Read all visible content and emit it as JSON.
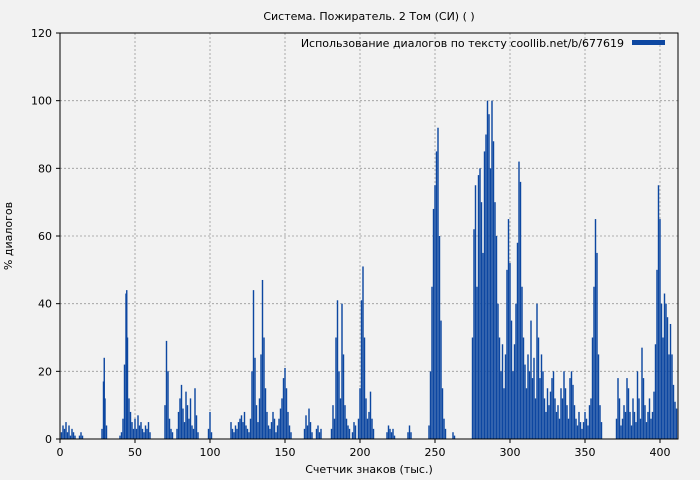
{
  "chart_data": {
    "type": "bar",
    "title": "Система. Пожиратель. 2 Том (СИ) ( )",
    "xlabel": "Счетчик знаков (тыс.)",
    "ylabel": "% диалогов",
    "xlim": [
      0,
      412
    ],
    "ylim": [
      0,
      120
    ],
    "xticks": [
      0,
      50,
      100,
      150,
      200,
      250,
      300,
      350,
      400
    ],
    "yticks": [
      0,
      20,
      40,
      60,
      80,
      100,
      120
    ],
    "grid": true,
    "legend_position": "top-right",
    "series": [
      {
        "name": "Использование диалогов по тексту coollib.net/b/677619",
        "color": "#0d47a1",
        "points": [
          [
            1,
            2
          ],
          [
            2,
            4
          ],
          [
            3,
            3
          ],
          [
            4,
            5
          ],
          [
            5,
            2
          ],
          [
            6,
            4
          ],
          [
            7,
            1
          ],
          [
            8,
            3
          ],
          [
            9,
            2
          ],
          [
            10,
            1
          ],
          [
            13,
            1
          ],
          [
            14,
            2
          ],
          [
            15,
            1
          ],
          [
            28,
            3
          ],
          [
            29,
            17
          ],
          [
            29.5,
            24
          ],
          [
            30,
            12
          ],
          [
            31,
            4
          ],
          [
            40,
            1
          ],
          [
            41,
            2
          ],
          [
            42,
            6
          ],
          [
            43,
            22
          ],
          [
            44,
            43
          ],
          [
            44.5,
            44
          ],
          [
            45,
            30
          ],
          [
            46,
            12
          ],
          [
            47,
            8
          ],
          [
            48,
            5
          ],
          [
            49,
            3
          ],
          [
            50,
            6
          ],
          [
            51,
            3
          ],
          [
            52,
            7
          ],
          [
            53,
            4
          ],
          [
            54,
            5
          ],
          [
            55,
            3
          ],
          [
            56,
            2
          ],
          [
            57,
            4
          ],
          [
            58,
            3
          ],
          [
            59,
            5
          ],
          [
            60,
            2
          ],
          [
            70,
            10
          ],
          [
            71,
            29
          ],
          [
            72,
            20
          ],
          [
            73,
            6
          ],
          [
            74,
            3
          ],
          [
            75,
            2
          ],
          [
            78,
            3
          ],
          [
            79,
            8
          ],
          [
            80,
            12
          ],
          [
            81,
            16
          ],
          [
            82,
            9
          ],
          [
            83,
            5
          ],
          [
            84,
            14
          ],
          [
            85,
            10
          ],
          [
            86,
            6
          ],
          [
            87,
            12
          ],
          [
            88,
            4
          ],
          [
            89,
            3
          ],
          [
            90,
            15
          ],
          [
            91,
            7
          ],
          [
            92,
            2
          ],
          [
            99,
            3
          ],
          [
            100,
            8
          ],
          [
            101,
            2
          ],
          [
            114,
            5
          ],
          [
            115,
            3
          ],
          [
            116,
            2
          ],
          [
            117,
            4
          ],
          [
            118,
            3
          ],
          [
            119,
            5
          ],
          [
            120,
            6
          ],
          [
            121,
            7
          ],
          [
            122,
            5
          ],
          [
            123,
            8
          ],
          [
            124,
            4
          ],
          [
            125,
            3
          ],
          [
            126,
            2
          ],
          [
            127,
            6
          ],
          [
            128,
            20
          ],
          [
            129,
            44
          ],
          [
            130,
            24
          ],
          [
            131,
            10
          ],
          [
            132,
            5
          ],
          [
            133,
            12
          ],
          [
            134,
            25
          ],
          [
            135,
            47
          ],
          [
            136,
            30
          ],
          [
            137,
            15
          ],
          [
            138,
            8
          ],
          [
            139,
            4
          ],
          [
            140,
            3
          ],
          [
            141,
            5
          ],
          [
            142,
            8
          ],
          [
            143,
            6
          ],
          [
            144,
            2
          ],
          [
            145,
            4
          ],
          [
            146,
            6
          ],
          [
            147,
            9
          ],
          [
            148,
            12
          ],
          [
            149,
            18
          ],
          [
            150,
            21
          ],
          [
            151,
            15
          ],
          [
            152,
            8
          ],
          [
            153,
            4
          ],
          [
            154,
            2
          ],
          [
            163,
            3
          ],
          [
            164,
            7
          ],
          [
            165,
            4
          ],
          [
            166,
            9
          ],
          [
            167,
            5
          ],
          [
            168,
            2
          ],
          [
            171,
            3
          ],
          [
            172,
            4
          ],
          [
            173,
            2
          ],
          [
            174,
            3
          ],
          [
            181,
            3
          ],
          [
            182,
            10
          ],
          [
            183,
            6
          ],
          [
            184,
            30
          ],
          [
            185,
            41
          ],
          [
            186,
            20
          ],
          [
            187,
            12
          ],
          [
            188,
            40
          ],
          [
            189,
            25
          ],
          [
            190,
            10
          ],
          [
            191,
            6
          ],
          [
            192,
            4
          ],
          [
            193,
            3
          ],
          [
            195,
            2
          ],
          [
            196,
            5
          ],
          [
            197,
            4
          ],
          [
            199,
            6
          ],
          [
            200,
            15
          ],
          [
            201,
            41
          ],
          [
            202,
            51
          ],
          [
            203,
            30
          ],
          [
            204,
            12
          ],
          [
            205,
            6
          ],
          [
            206,
            8
          ],
          [
            207,
            14
          ],
          [
            208,
            6
          ],
          [
            209,
            3
          ],
          [
            218,
            2
          ],
          [
            219,
            4
          ],
          [
            220,
            3
          ],
          [
            221,
            2
          ],
          [
            222,
            3
          ],
          [
            223,
            1
          ],
          [
            232,
            2
          ],
          [
            233,
            4
          ],
          [
            234,
            2
          ],
          [
            246,
            4
          ],
          [
            247,
            20
          ],
          [
            248,
            45
          ],
          [
            249,
            68
          ],
          [
            250,
            75
          ],
          [
            251,
            85
          ],
          [
            252,
            92
          ],
          [
            253,
            60
          ],
          [
            254,
            35
          ],
          [
            255,
            15
          ],
          [
            256,
            6
          ],
          [
            257,
            3
          ],
          [
            262,
            2
          ],
          [
            263,
            1
          ],
          [
            275,
            30
          ],
          [
            276,
            62
          ],
          [
            277,
            75
          ],
          [
            278,
            45
          ],
          [
            279,
            78
          ],
          [
            280,
            80
          ],
          [
            281,
            70
          ],
          [
            282,
            55
          ],
          [
            283,
            85
          ],
          [
            284,
            90
          ],
          [
            285,
            100
          ],
          [
            286,
            96
          ],
          [
            287,
            80
          ],
          [
            288,
            100
          ],
          [
            289,
            88
          ],
          [
            290,
            70
          ],
          [
            291,
            60
          ],
          [
            292,
            40
          ],
          [
            293,
            30
          ],
          [
            294,
            20
          ],
          [
            295,
            28
          ],
          [
            296,
            15
          ],
          [
            297,
            25
          ],
          [
            298,
            50
          ],
          [
            299,
            65
          ],
          [
            300,
            52
          ],
          [
            301,
            35
          ],
          [
            302,
            20
          ],
          [
            303,
            28
          ],
          [
            304,
            40
          ],
          [
            305,
            58
          ],
          [
            306,
            82
          ],
          [
            307,
            76
          ],
          [
            308,
            45
          ],
          [
            309,
            30
          ],
          [
            310,
            22
          ],
          [
            311,
            15
          ],
          [
            312,
            25
          ],
          [
            313,
            20
          ],
          [
            314,
            35
          ],
          [
            315,
            18
          ],
          [
            316,
            24
          ],
          [
            317,
            12
          ],
          [
            318,
            40
          ],
          [
            319,
            30
          ],
          [
            320,
            18
          ],
          [
            321,
            25
          ],
          [
            322,
            20
          ],
          [
            323,
            12
          ],
          [
            324,
            8
          ],
          [
            325,
            15
          ],
          [
            326,
            10
          ],
          [
            327,
            14
          ],
          [
            328,
            18
          ],
          [
            329,
            20
          ],
          [
            330,
            12
          ],
          [
            331,
            8
          ],
          [
            332,
            10
          ],
          [
            333,
            6
          ],
          [
            334,
            15
          ],
          [
            335,
            12
          ],
          [
            336,
            20
          ],
          [
            337,
            15
          ],
          [
            338,
            10
          ],
          [
            339,
            6
          ],
          [
            340,
            18
          ],
          [
            341,
            20
          ],
          [
            342,
            16
          ],
          [
            343,
            10
          ],
          [
            344,
            6
          ],
          [
            345,
            4
          ],
          [
            346,
            8
          ],
          [
            347,
            5
          ],
          [
            348,
            3
          ],
          [
            349,
            5
          ],
          [
            350,
            8
          ],
          [
            351,
            6
          ],
          [
            352,
            4
          ],
          [
            353,
            10
          ],
          [
            354,
            12
          ],
          [
            355,
            30
          ],
          [
            356,
            45
          ],
          [
            357,
            65
          ],
          [
            358,
            55
          ],
          [
            359,
            25
          ],
          [
            360,
            10
          ],
          [
            361,
            5
          ],
          [
            371,
            6
          ],
          [
            372,
            18
          ],
          [
            373,
            12
          ],
          [
            374,
            4
          ],
          [
            375,
            6
          ],
          [
            376,
            10
          ],
          [
            377,
            8
          ],
          [
            378,
            18
          ],
          [
            379,
            15
          ],
          [
            380,
            8
          ],
          [
            381,
            4
          ],
          [
            382,
            12
          ],
          [
            383,
            8
          ],
          [
            384,
            5
          ],
          [
            385,
            20
          ],
          [
            386,
            12
          ],
          [
            387,
            6
          ],
          [
            388,
            27
          ],
          [
            389,
            18
          ],
          [
            390,
            10
          ],
          [
            391,
            5
          ],
          [
            392,
            8
          ],
          [
            393,
            12
          ],
          [
            394,
            6
          ],
          [
            395,
            8
          ],
          [
            396,
            14
          ],
          [
            397,
            28
          ],
          [
            398,
            50
          ],
          [
            399,
            75
          ],
          [
            400,
            65
          ],
          [
            401,
            40
          ],
          [
            402,
            30
          ],
          [
            403,
            43
          ],
          [
            404,
            40
          ],
          [
            405,
            36
          ],
          [
            406,
            25
          ],
          [
            407,
            34
          ],
          [
            408,
            25
          ],
          [
            409,
            16
          ],
          [
            410,
            11
          ],
          [
            411,
            9
          ]
        ]
      }
    ]
  }
}
